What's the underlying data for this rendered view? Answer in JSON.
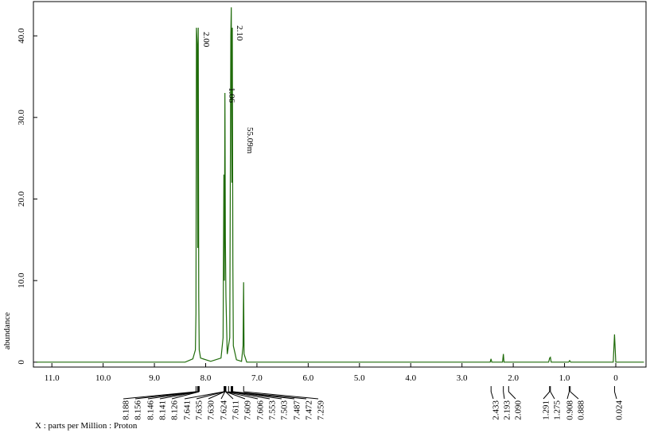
{
  "chart_data": {
    "type": "line",
    "y_label": "abundance",
    "x_label": "X : parts per Million : Proton",
    "xlim": [
      11.36,
      -0.59
    ],
    "ylim": [
      -0.6,
      44.2
    ],
    "xticks": [
      {
        "value": 11,
        "label": "11.0"
      },
      {
        "value": 10,
        "label": "10.0"
      },
      {
        "value": 9,
        "label": "9.0"
      },
      {
        "value": 8,
        "label": "8.0"
      },
      {
        "value": 7,
        "label": "7.0"
      },
      {
        "value": 6,
        "label": "6.0"
      },
      {
        "value": 5,
        "label": "5.0"
      },
      {
        "value": 4,
        "label": "4.0"
      },
      {
        "value": 3,
        "label": "3.0"
      },
      {
        "value": 2,
        "label": "2.0"
      },
      {
        "value": 1,
        "label": "1.0"
      },
      0
    ],
    "yticks": [
      0,
      {
        "value": 10,
        "label": "10.0"
      },
      {
        "value": 20,
        "label": "20.0"
      },
      {
        "value": 30,
        "label": "30.0"
      },
      {
        "value": 40,
        "label": "40.0"
      }
    ],
    "series": [
      {
        "name": "Proton",
        "color": "#1f6b0a",
        "x": [
          11.3,
          8.4,
          8.25,
          8.2,
          8.19,
          8.18,
          8.165,
          8.155,
          8.145,
          8.135,
          8.125,
          8.1,
          7.9,
          7.7,
          7.66,
          7.645,
          7.635,
          7.625,
          7.615,
          7.605,
          7.58,
          7.53,
          7.51,
          7.5,
          7.49,
          7.48,
          7.47,
          7.46,
          7.4,
          7.3,
          7.27,
          7.26,
          7.25,
          7.2,
          2.45,
          2.433,
          2.42,
          2.21,
          2.193,
          2.18,
          1.31,
          1.29,
          1.275,
          1.26,
          0.92,
          0.9,
          0.88,
          0.05,
          0.024,
          0.0,
          -0.55
        ],
        "values": [
          0,
          0,
          0.4,
          1.5,
          6,
          41,
          39,
          14,
          41,
          8,
          1.5,
          0.5,
          0.1,
          0.5,
          3,
          23,
          10,
          33,
          15,
          8,
          1,
          3,
          40,
          43.5,
          22,
          41,
          12,
          2,
          0.3,
          0.1,
          2,
          9.8,
          1,
          0,
          0,
          0.4,
          0,
          0,
          1,
          0,
          0,
          0.5,
          0.6,
          0,
          0,
          0.2,
          0,
          0,
          3.4,
          0,
          0
        ]
      }
    ],
    "integrals": [
      "2.00",
      "1.06",
      "2.10",
      "55.09m"
    ],
    "peak_labels": [
      "8.188",
      "8.156",
      "8.146",
      "8.141",
      "8.126",
      "7.641",
      "7.635",
      "7.630",
      "7.624",
      "7.611",
      "7.609",
      "7.606",
      "7.553",
      "7.503",
      "7.487",
      "7.472",
      "7.259",
      "2.433",
      "2.193",
      "2.090",
      "1.291",
      "1.275",
      "0.908",
      "0.888",
      "0.024"
    ]
  }
}
